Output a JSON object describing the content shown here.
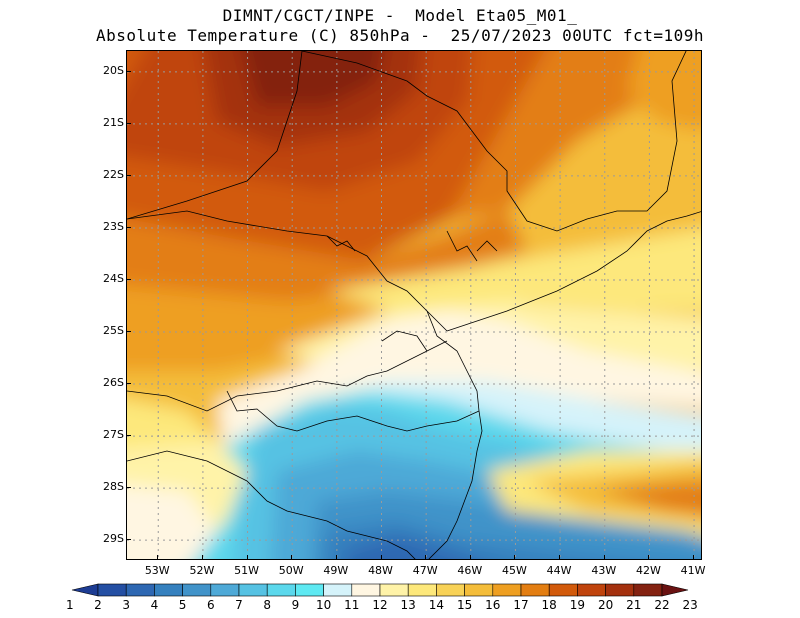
{
  "header": {
    "line1": "DIMNT/CGCT/INPE -  Model Eta05_M01_",
    "line2": "Absolute Temperature (C) 850hPa -  25/07/2023 00UTC fct=109h"
  },
  "map": {
    "lat_labels": [
      "20S",
      "21S",
      "22S",
      "23S",
      "24S",
      "25S",
      "26S",
      "27S",
      "28S",
      "29S"
    ],
    "lon_labels": [
      "53W",
      "52W",
      "51W",
      "50W",
      "49W",
      "48W",
      "47W",
      "46W",
      "45W",
      "44W",
      "43W",
      "42W",
      "41W"
    ],
    "lat_range": [
      -29.4,
      -19.6
    ],
    "lon_range": [
      -53.7,
      -40.8
    ]
  },
  "colorbar": {
    "labels": [
      "1",
      "2",
      "3",
      "4",
      "5",
      "6",
      "7",
      "8",
      "9",
      "10",
      "11",
      "12",
      "13",
      "14",
      "15",
      "16",
      "17",
      "18",
      "19",
      "20",
      "21",
      "22",
      "23"
    ],
    "colors": [
      "#1d3c93",
      "#244fa3",
      "#2e67b2",
      "#3580be",
      "#4193c9",
      "#4ea9d7",
      "#56c2e3",
      "#5bd8ec",
      "#5ee9f2",
      "#d5f3fa",
      "#fff6e2",
      "#fff3a8",
      "#fde87b",
      "#f8d257",
      "#f4bd3a",
      "#ee9f21",
      "#e37e12",
      "#d25a0b",
      "#c0440d",
      "#a4310e",
      "#842211",
      "#6a1212"
    ]
  }
}
